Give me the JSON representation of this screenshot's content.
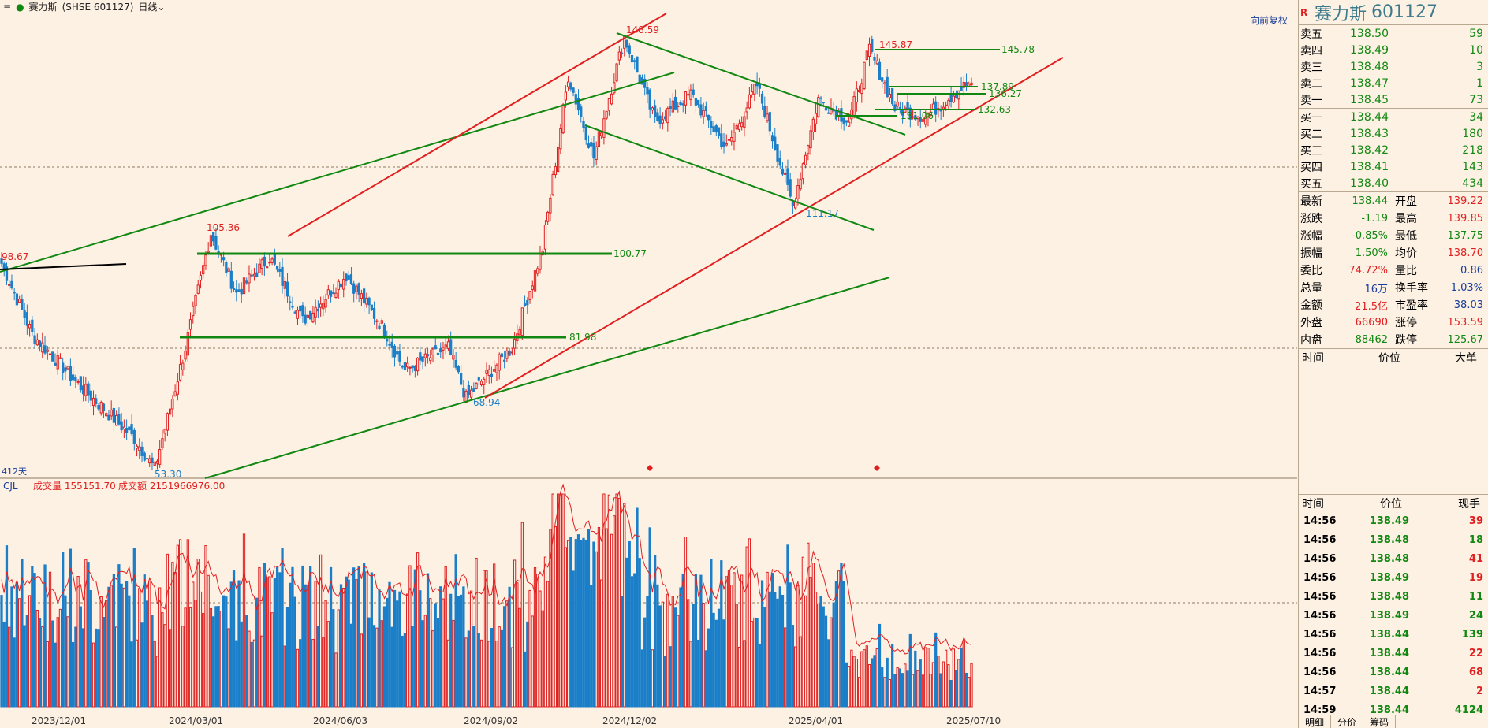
{
  "toolbar": {
    "menu_glyph": "≡",
    "stock_label": "赛力斯",
    "market_code": "(SHSE 601127)",
    "period": "日线",
    "adjust_button": "向前复权"
  },
  "colors": {
    "up": "#e02020",
    "down": "#1a7fc8",
    "trend_red": "#e02020",
    "trend_green": "#118811",
    "bg": "#fdf1e3"
  },
  "chart_data": {
    "type": "candlestick",
    "ylim": [
      53.3,
      148.59
    ],
    "day_count_label": "412天",
    "annotations": [
      {
        "label": "98.67",
        "value": 98.67,
        "color": "#e02020"
      },
      {
        "label": "105.36",
        "value": 105.36,
        "color": "#e02020"
      },
      {
        "label": "53.30",
        "value": 53.3,
        "color": "#1a7fc8"
      },
      {
        "label": "68.94",
        "value": 68.94,
        "color": "#1a7fc8"
      },
      {
        "label": "148.59",
        "value": 148.59,
        "color": "#e02020"
      },
      {
        "label": "145.87",
        "value": 145.87,
        "color": "#e02020"
      },
      {
        "label": "111.17",
        "value": 111.17,
        "color": "#1a7fc8"
      },
      {
        "label": "100.77",
        "value": 100.77,
        "color": "#118811"
      },
      {
        "label": "81.98",
        "value": 81.98,
        "color": "#118811"
      },
      {
        "label": "145.78",
        "value": 145.78,
        "color": "#118811"
      },
      {
        "label": "137.89",
        "value": 137.89,
        "color": "#118811"
      },
      {
        "label": "136.27",
        "value": 136.27,
        "color": "#118811"
      },
      {
        "label": "132.63",
        "value": 132.63,
        "color": "#118811"
      },
      {
        "label": "131.06",
        "value": 131.06,
        "color": "#118811"
      }
    ],
    "x_ticks": [
      "2023/12/01",
      "2024/03/01",
      "2024/06/03",
      "2024/09/02",
      "2024/12/02",
      "2025/04/01",
      "2025/07/10"
    ],
    "key_points": [
      {
        "day": 0,
        "price": 98.67
      },
      {
        "day": 12,
        "price": 83
      },
      {
        "day": 30,
        "price": 72
      },
      {
        "day": 52,
        "price": 60
      },
      {
        "day": 60,
        "price": 53.3
      },
      {
        "day": 72,
        "price": 80
      },
      {
        "day": 82,
        "price": 105.36
      },
      {
        "day": 92,
        "price": 92
      },
      {
        "day": 105,
        "price": 100
      },
      {
        "day": 118,
        "price": 86
      },
      {
        "day": 135,
        "price": 96
      },
      {
        "day": 150,
        "price": 84
      },
      {
        "day": 158,
        "price": 75
      },
      {
        "day": 175,
        "price": 80
      },
      {
        "day": 182,
        "price": 68.94
      },
      {
        "day": 200,
        "price": 80
      },
      {
        "day": 212,
        "price": 102
      },
      {
        "day": 222,
        "price": 140
      },
      {
        "day": 232,
        "price": 122
      },
      {
        "day": 244,
        "price": 148.59
      },
      {
        "day": 256,
        "price": 130
      },
      {
        "day": 270,
        "price": 136
      },
      {
        "day": 284,
        "price": 124
      },
      {
        "day": 296,
        "price": 138
      },
      {
        "day": 310,
        "price": 111.17
      },
      {
        "day": 320,
        "price": 135
      },
      {
        "day": 332,
        "price": 130
      },
      {
        "day": 340,
        "price": 145.87
      },
      {
        "day": 350,
        "price": 133
      },
      {
        "day": 362,
        "price": 131
      },
      {
        "day": 375,
        "price": 137
      },
      {
        "day": 380,
        "price": 138.44
      }
    ],
    "volume_header": {
      "name": "CJL",
      "vol_label": "成交量 155151.70",
      "amt_label": "成交额 2151966976.00"
    }
  },
  "quote": {
    "name": "赛力斯",
    "code": "601127",
    "asks": [
      {
        "label": "卖五",
        "price": "138.50",
        "vol": "59"
      },
      {
        "label": "卖四",
        "price": "138.49",
        "vol": "10"
      },
      {
        "label": "卖三",
        "price": "138.48",
        "vol": "3"
      },
      {
        "label": "卖二",
        "price": "138.47",
        "vol": "1"
      },
      {
        "label": "卖一",
        "price": "138.45",
        "vol": "73"
      }
    ],
    "bids": [
      {
        "label": "买一",
        "price": "138.44",
        "vol": "34"
      },
      {
        "label": "买二",
        "price": "138.43",
        "vol": "180"
      },
      {
        "label": "买三",
        "price": "138.42",
        "vol": "218"
      },
      {
        "label": "买四",
        "price": "138.41",
        "vol": "143"
      },
      {
        "label": "买五",
        "price": "138.40",
        "vol": "434"
      }
    ],
    "stats": [
      [
        {
          "l": "最新",
          "v": "138.44",
          "c": "g"
        },
        {
          "l": "开盘",
          "v": "139.22",
          "c": "r"
        }
      ],
      [
        {
          "l": "涨跌",
          "v": "-1.19",
          "c": "g"
        },
        {
          "l": "最高",
          "v": "139.85",
          "c": "r"
        }
      ],
      [
        {
          "l": "涨幅",
          "v": "-0.85%",
          "c": "g"
        },
        {
          "l": "最低",
          "v": "137.75",
          "c": "g"
        }
      ],
      [
        {
          "l": "振幅",
          "v": "1.50%",
          "c": "g"
        },
        {
          "l": "均价",
          "v": "138.70",
          "c": "r"
        }
      ],
      [
        {
          "l": "委比",
          "v": "74.72%",
          "c": "r"
        },
        {
          "l": "量比",
          "v": "0.86",
          "c": "b"
        }
      ],
      [
        {
          "l": "总量",
          "v": "16万",
          "c": "b"
        },
        {
          "l": "换手率",
          "v": "1.03%",
          "c": "b"
        }
      ],
      [
        {
          "l": "金额",
          "v": "21.5亿",
          "c": "r"
        },
        {
          "l": "市盈率",
          "v": "38.03",
          "c": "b"
        }
      ],
      [
        {
          "l": "外盘",
          "v": "66690",
          "c": "r"
        },
        {
          "l": "涨停",
          "v": "153.59",
          "c": "r"
        }
      ],
      [
        {
          "l": "内盘",
          "v": "88462",
          "c": "g"
        },
        {
          "l": "跌停",
          "v": "125.67",
          "c": "g"
        }
      ]
    ],
    "bigorder_head": [
      "时间",
      "价位",
      "大单"
    ],
    "tick_head": [
      "时间",
      "价位",
      "现手"
    ],
    "ticks": [
      {
        "t": "14:56",
        "p": "138.49",
        "v": "39",
        "c": "r"
      },
      {
        "t": "14:56",
        "p": "138.48",
        "v": "18",
        "c": "g"
      },
      {
        "t": "14:56",
        "p": "138.48",
        "v": "41",
        "c": "r"
      },
      {
        "t": "14:56",
        "p": "138.49",
        "v": "19",
        "c": "r"
      },
      {
        "t": "14:56",
        "p": "138.48",
        "v": "11",
        "c": "g"
      },
      {
        "t": "14:56",
        "p": "138.49",
        "v": "24",
        "c": "g"
      },
      {
        "t": "14:56",
        "p": "138.44",
        "v": "139",
        "c": "g"
      },
      {
        "t": "14:56",
        "p": "138.44",
        "v": "22",
        "c": "r"
      },
      {
        "t": "14:56",
        "p": "138.44",
        "v": "68",
        "c": "r"
      },
      {
        "t": "14:57",
        "p": "138.44",
        "v": "2",
        "c": "r"
      },
      {
        "t": "14:59",
        "p": "138.44",
        "v": "4124",
        "c": "g"
      }
    ],
    "tabs": [
      "明细",
      "分价",
      "筹码"
    ]
  }
}
